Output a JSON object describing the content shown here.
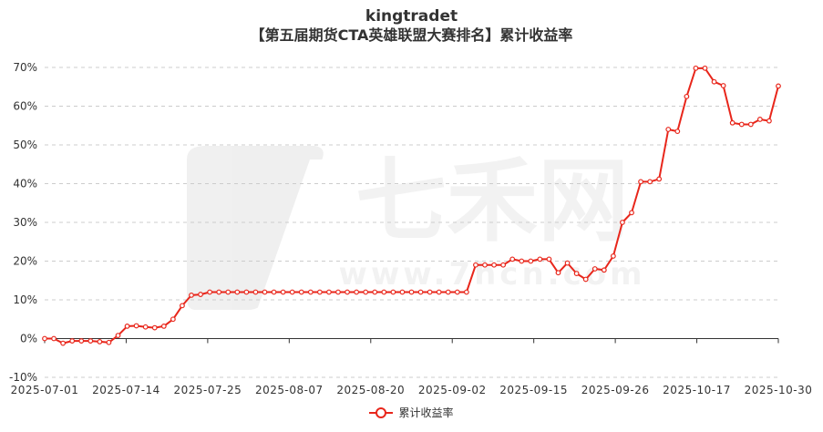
{
  "chart_data": {
    "type": "line",
    "title": "kingtradet",
    "subtitle": "【第五届期货CTA英雄联盟大赛排名】累计收益率",
    "xlabel": "",
    "ylabel": "",
    "ylim": [
      -10,
      70
    ],
    "yticks": [
      "-10%",
      "0%",
      "10%",
      "20%",
      "30%",
      "40%",
      "50%",
      "60%",
      "70%"
    ],
    "xticks": [
      "2025-07-01",
      "2025-07-14",
      "2025-07-25",
      "2025-08-07",
      "2025-08-20",
      "2025-09-02",
      "2025-09-15",
      "2025-09-26",
      "2025-10-17",
      "2025-10-30"
    ],
    "grid": "horizontal dashed",
    "legend_position": "bottom-center",
    "color": "#e8261b",
    "series": [
      {
        "name": "累计收益率",
        "values": [
          0,
          0,
          -1.2,
          -0.6,
          -0.6,
          -0.6,
          -0.8,
          -1.0,
          0.8,
          3.2,
          3.3,
          3.0,
          2.8,
          3.2,
          5.0,
          8.5,
          11.2,
          11.4,
          12.0,
          12.0,
          12.0,
          12.0,
          12.0,
          12.0,
          12.0,
          12.0,
          12.0,
          12.0,
          12.0,
          12.0,
          12.0,
          12.0,
          12.0,
          12.0,
          12.0,
          12.0,
          12.0,
          12.0,
          12.0,
          12.0,
          12.0,
          12.0,
          12.0,
          12.0,
          12.0,
          12.0,
          12.0,
          19.0,
          19.0,
          19.0,
          19.0,
          20.5,
          20.0,
          20.0,
          20.5,
          20.5,
          17.0,
          19.5,
          16.8,
          15.3,
          18.0,
          17.7,
          21.3,
          30.0,
          32.5,
          40.5,
          40.5,
          41.2,
          54.0,
          53.5,
          62.5,
          69.8,
          69.8,
          66.3,
          65.3,
          55.7,
          55.3,
          55.3,
          56.6,
          56.2,
          65.2
        ]
      }
    ]
  },
  "watermark": {
    "brand": "七禾网",
    "url": "www.7hcn.com"
  }
}
